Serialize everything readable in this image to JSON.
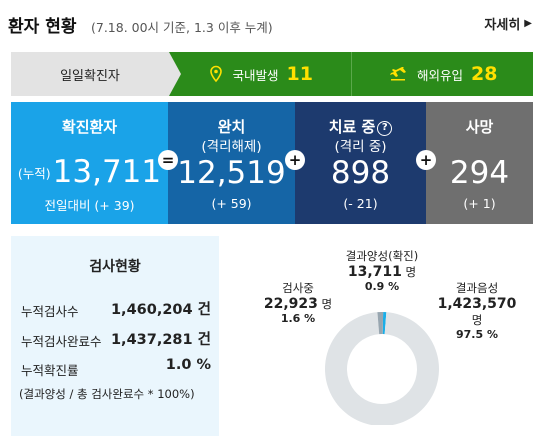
{
  "header": {
    "title": "환자 현황",
    "subtitle": "(7.18. 00시 기준, 1.3 이후 누계)",
    "more_label": "자세히"
  },
  "daily": {
    "label": "일일확진자",
    "domestic_label": "국내발생",
    "domestic_value": "11",
    "overseas_label": "해외유입",
    "overseas_value": "28"
  },
  "stats": {
    "confirmed": {
      "title": "확진환자",
      "prefix": "(누적)",
      "value": "13,711",
      "change": "전일대비 (+ 39)"
    },
    "released": {
      "title": "완치",
      "subtitle": "(격리해제)",
      "value": "12,519",
      "change": "(+ 59)"
    },
    "treating": {
      "title": "치료 중",
      "subtitle": "(격리 중)",
      "value": "898",
      "change": "(- 21)"
    },
    "deaths": {
      "title": "사망",
      "value": "294",
      "change": "(+ 1)"
    },
    "op_eq": "=",
    "op_plus": "+",
    "help_glyph": "?"
  },
  "tests": {
    "title": "검사현황",
    "rows": [
      {
        "key": "누적검사수",
        "value": "1,460,204 건"
      },
      {
        "key": "누적검사완료수",
        "value": "1,437,281 건"
      },
      {
        "key": "누적확진률",
        "value": "1.0 %"
      }
    ],
    "formula": "(결과양성 / 총 검사완료수 * 100%)",
    "positive": {
      "label": "결과양성(확진)",
      "value": "13,711",
      "unit": "명",
      "pct": "0.9 %"
    },
    "testing": {
      "label": "검사중",
      "value": "22,923",
      "unit": "명",
      "pct": "1.6 %"
    },
    "negative": {
      "label": "결과음성",
      "value": "1,423,570",
      "unit": "명",
      "pct": "97.5 %"
    }
  },
  "chart_data": {
    "type": "pie",
    "categories": [
      "결과양성(확진)",
      "검사중",
      "결과음성"
    ],
    "values": [
      0.9,
      1.6,
      97.5
    ],
    "colors": [
      "#19aee8",
      "#dfe3e6",
      "#98a6b0"
    ]
  }
}
